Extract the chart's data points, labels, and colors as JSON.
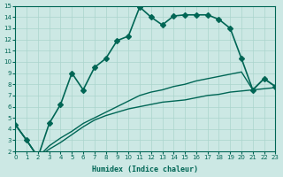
{
  "xlabel": "Humidex (Indice chaleur)",
  "xlim": [
    0,
    23
  ],
  "ylim": [
    2,
    15
  ],
  "xticks": [
    0,
    1,
    2,
    3,
    4,
    5,
    6,
    7,
    8,
    9,
    10,
    11,
    12,
    13,
    14,
    15,
    16,
    17,
    18,
    19,
    20,
    21,
    22,
    23
  ],
  "yticks": [
    2,
    3,
    4,
    5,
    6,
    7,
    8,
    9,
    10,
    11,
    12,
    13,
    14,
    15
  ],
  "bg_color": "#cce8e4",
  "grid_color": "#aad4cc",
  "line_color": "#006655",
  "series": [
    {
      "x": [
        0,
        1,
        2,
        3,
        4,
        5,
        6,
        7,
        8,
        9,
        10,
        11,
        12,
        13,
        14,
        15,
        16,
        17,
        18,
        19,
        20,
        21,
        22,
        23
      ],
      "y": [
        4.4,
        3.0,
        1.5,
        4.5,
        6.2,
        9.0,
        7.5,
        9.5,
        10.3,
        11.9,
        12.3,
        14.9,
        14.0,
        13.3,
        14.1,
        14.2,
        14.2,
        14.2,
        13.8,
        13.0,
        10.3,
        7.5,
        8.5,
        7.8
      ],
      "has_marker": true,
      "marker": "D",
      "marker_size": 3,
      "linewidth": 1.2
    },
    {
      "x": [
        0,
        1,
        2,
        3,
        4,
        5,
        6,
        7,
        8,
        9,
        10,
        11,
        12,
        13,
        14,
        15,
        16,
        17,
        18,
        19,
        20,
        21,
        22,
        23
      ],
      "y": [
        4.4,
        3.0,
        1.5,
        2.2,
        2.8,
        3.5,
        4.2,
        4.8,
        5.2,
        5.5,
        5.8,
        6.0,
        6.2,
        6.4,
        6.5,
        6.6,
        6.8,
        7.0,
        7.1,
        7.3,
        7.4,
        7.5,
        7.6,
        7.7
      ],
      "has_marker": false,
      "marker": null,
      "marker_size": 0,
      "linewidth": 1.0
    },
    {
      "x": [
        0,
        1,
        2,
        3,
        4,
        5,
        6,
        7,
        8,
        9,
        10,
        11,
        12,
        13,
        14,
        15,
        16,
        17,
        18,
        19,
        20,
        21,
        22,
        23
      ],
      "y": [
        4.4,
        3.0,
        1.5,
        2.5,
        3.2,
        3.8,
        4.5,
        5.0,
        5.5,
        6.0,
        6.5,
        7.0,
        7.3,
        7.5,
        7.8,
        8.0,
        8.3,
        8.5,
        8.7,
        8.9,
        9.1,
        7.5,
        8.5,
        7.8
      ],
      "has_marker": false,
      "marker": null,
      "marker_size": 0,
      "linewidth": 1.0
    }
  ]
}
